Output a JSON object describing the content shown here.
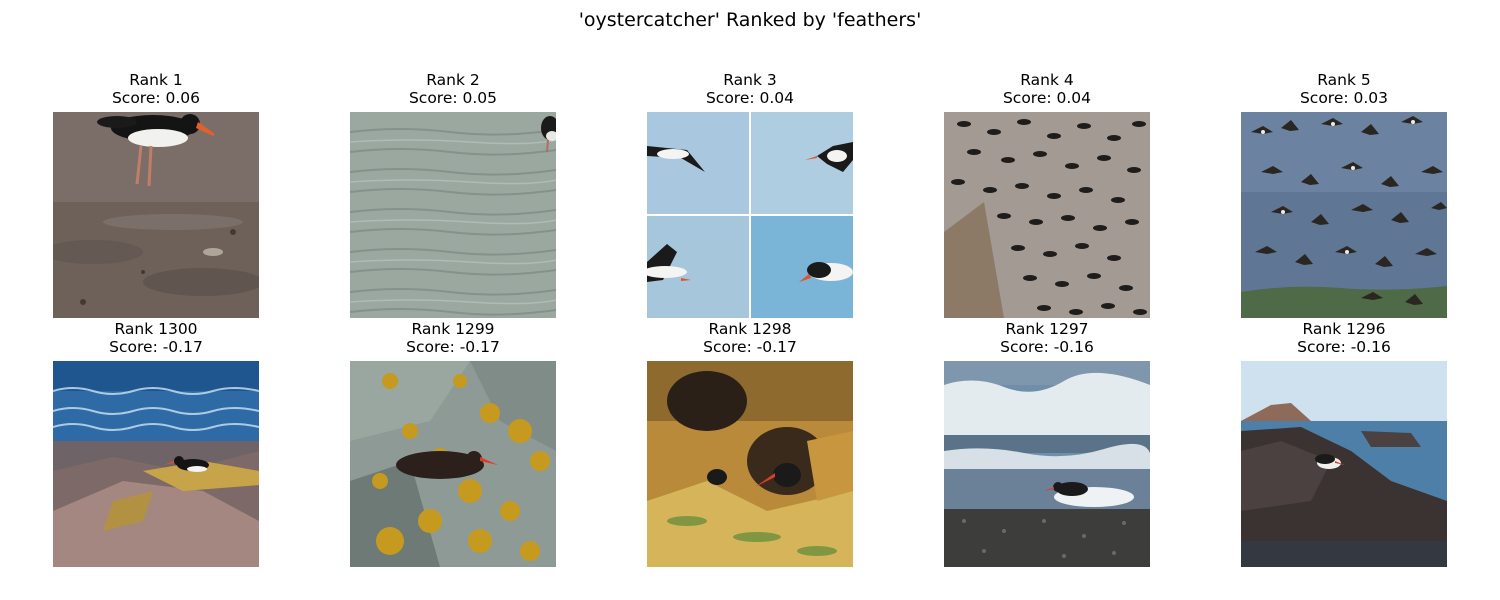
{
  "figure": {
    "title": "'oystercatcher' Ranked by 'feathers'"
  },
  "panels": [
    {
      "rank": "Rank 1",
      "score": "Score: 0.06"
    },
    {
      "rank": "Rank 2",
      "score": "Score: 0.05"
    },
    {
      "rank": "Rank 3",
      "score": "Score: 0.04"
    },
    {
      "rank": "Rank 4",
      "score": "Score: 0.04"
    },
    {
      "rank": "Rank 5",
      "score": "Score: 0.03"
    },
    {
      "rank": "Rank 1300",
      "score": "Score: -0.17"
    },
    {
      "rank": "Rank 1299",
      "score": "Score: -0.17"
    },
    {
      "rank": "Rank 1298",
      "score": "Score: -0.17"
    },
    {
      "rank": "Rank 1297",
      "score": "Score: -0.16"
    },
    {
      "rank": "Rank 1296",
      "score": "Score: -0.16"
    }
  ]
}
